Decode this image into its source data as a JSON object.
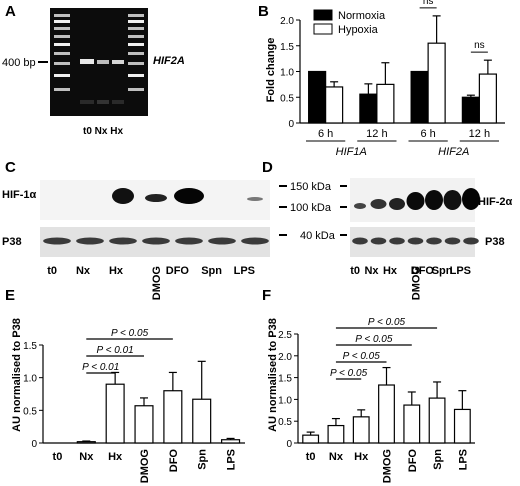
{
  "panels": {
    "A": {
      "letter": "A",
      "marker": "400 bp",
      "gene": "HIF2A",
      "lanes_label": "t0  Nx Hx"
    },
    "B": {
      "letter": "B"
    },
    "C": {
      "letter": "C",
      "top_label": "HIF-1α",
      "bottom_label": "P38",
      "lanes": [
        "t0",
        "Nx",
        "Hx",
        "DMOG",
        "DFO",
        "Spn",
        "LPS"
      ]
    },
    "D": {
      "letter": "D",
      "top_label": "HIF-2α",
      "bottom_label": "P38",
      "lanes": [
        "t0",
        "Nx",
        "Hx",
        "DMOG",
        "DFO",
        "Spn",
        "LPS"
      ]
    },
    "markers": [
      "150 kDa",
      "100 kDa",
      "40 kDa"
    ],
    "E": {
      "letter": "E"
    },
    "F": {
      "letter": "F"
    }
  },
  "chart_data": [
    {
      "id": "B",
      "type": "bar",
      "ylabel": "Fold change",
      "ylim": [
        0,
        2.0
      ],
      "yticks": [
        "0",
        "0.5",
        "1.0",
        "1.5",
        "2.0"
      ],
      "groups": [
        "6 h",
        "12 h",
        "6 h",
        "12 h"
      ],
      "gene_labels": [
        "HIF1A",
        "HIF2A"
      ],
      "series": [
        {
          "name": "Normoxia",
          "color": "#000000",
          "values": [
            1.0,
            0.56,
            1.0,
            0.5
          ],
          "errors": [
            0,
            0.2,
            0,
            0.04
          ]
        },
        {
          "name": "Hypoxia",
          "color": "#ffffff",
          "values": [
            0.7,
            0.75,
            1.55,
            0.95
          ],
          "errors": [
            0.1,
            0.42,
            0.53,
            0.27
          ]
        }
      ],
      "annotations": [
        "ns",
        "ns"
      ],
      "legend": "top-left"
    },
    {
      "id": "E",
      "type": "bar",
      "ylabel": "AU normalised to P38",
      "ylim": [
        0,
        1.5
      ],
      "yticks": [
        "0",
        "0.5",
        "1.0",
        "1.5"
      ],
      "categories": [
        "t0",
        "Nx",
        "Hx",
        "DMOG",
        "DFO",
        "Spn",
        "LPS"
      ],
      "values": [
        0.0,
        0.02,
        0.9,
        0.57,
        0.8,
        0.67,
        0.05
      ],
      "errors": [
        0,
        0.01,
        0.18,
        0.12,
        0.28,
        0.58,
        0.02
      ],
      "significance": [
        {
          "label": "P < 0.05",
          "from": "Nx",
          "to": "DFO"
        },
        {
          "label": "P < 0.01",
          "from": "Nx",
          "to": "DMOG"
        },
        {
          "label": "P < 0.01",
          "from": "Nx",
          "to": "Hx"
        }
      ]
    },
    {
      "id": "F",
      "type": "bar",
      "ylabel": "AU normalised to P38",
      "ylim": [
        0,
        2.5
      ],
      "yticks": [
        "0",
        "0.5",
        "1.0",
        "1.5",
        "2.0",
        "2.5"
      ],
      "categories": [
        "t0",
        "Nx",
        "Hx",
        "DMOG",
        "DFO",
        "Spn",
        "LPS"
      ],
      "values": [
        0.18,
        0.4,
        0.6,
        1.33,
        0.87,
        1.03,
        0.77
      ],
      "errors": [
        0.07,
        0.16,
        0.16,
        0.4,
        0.3,
        0.37,
        0.43
      ],
      "significance": [
        {
          "label": "P < 0.05",
          "from": "Nx",
          "to": "Spn"
        },
        {
          "label": "P < 0.05",
          "from": "Nx",
          "to": "DFO"
        },
        {
          "label": "P < 0.05",
          "from": "Nx",
          "to": "DMOG"
        },
        {
          "label": "P < 0.05",
          "from": "Nx",
          "to": "Hx"
        }
      ]
    }
  ]
}
